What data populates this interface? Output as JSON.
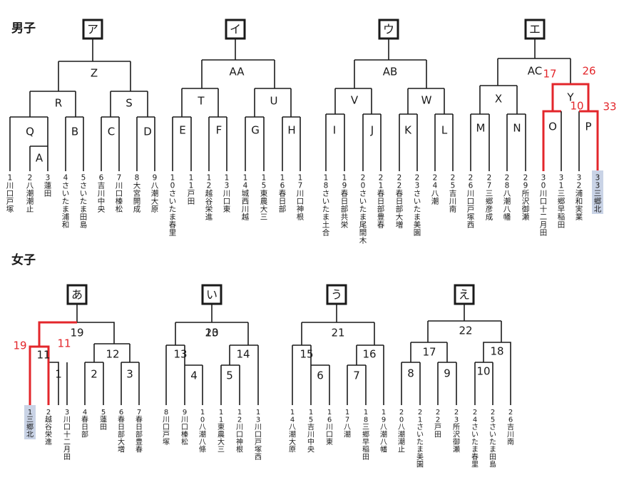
{
  "sections": {
    "boys": {
      "title": "男子"
    },
    "girls": {
      "title": "女子"
    }
  },
  "boys": {
    "blocks": [
      {
        "header": "ア",
        "final": "Z",
        "nodes": {
          "R": "R",
          "S": "S",
          "Q": "Q",
          "A": "A",
          "B": "B",
          "C": "C",
          "D": "D"
        },
        "teams": [
          {
            "num": "1",
            "name": "川口戸塚"
          },
          {
            "num": "2",
            "name": "八潮潮止"
          },
          {
            "num": "3",
            "name": "蓮田"
          },
          {
            "num": "4",
            "name": "さいたま浦和"
          },
          {
            "num": "5",
            "name": "さいたま田島"
          },
          {
            "num": "6",
            "name": "吉川中央"
          },
          {
            "num": "7",
            "name": "川口榛松"
          },
          {
            "num": "8",
            "name": "大宮開成"
          },
          {
            "num": "9",
            "name": "八潮大原"
          }
        ]
      },
      {
        "header": "イ",
        "final": "AA",
        "nodes": {
          "T": "T",
          "U": "U",
          "E": "E",
          "F": "F",
          "G": "G",
          "H": "H"
        },
        "teams": [
          {
            "num": "10",
            "name": "さいたま春里"
          },
          {
            "num": "11",
            "name": "戸田"
          },
          {
            "num": "12",
            "name": "越谷栄進"
          },
          {
            "num": "13",
            "name": "川口東"
          },
          {
            "num": "14",
            "name": "城西川越"
          },
          {
            "num": "15",
            "name": "東農大三"
          },
          {
            "num": "16",
            "name": "春日部"
          },
          {
            "num": "17",
            "name": "川口神根"
          }
        ]
      },
      {
        "header": "ウ",
        "final": "AB",
        "nodes": {
          "V": "V",
          "W": "W",
          "I": "I",
          "J": "J",
          "K": "K",
          "L": "L"
        },
        "teams": [
          {
            "num": "18",
            "name": "さいたま土合"
          },
          {
            "num": "19",
            "name": "春日部共栄"
          },
          {
            "num": "20",
            "name": "さいたま尾間木"
          },
          {
            "num": "21",
            "name": "春日部豊春"
          },
          {
            "num": "22",
            "name": "春日部大増"
          },
          {
            "num": "23",
            "name": "さいたま美園"
          },
          {
            "num": "24",
            "name": "八潮"
          },
          {
            "num": "25",
            "name": "吉川南"
          }
        ]
      },
      {
        "header": "エ",
        "final": "AC",
        "nodes": {
          "X": "X",
          "Y": "Y",
          "M": "M",
          "N": "N",
          "O": "O",
          "P": "P"
        },
        "teams": [
          {
            "num": "26",
            "name": "川口戸塚西"
          },
          {
            "num": "27",
            "name": "三郷彦成"
          },
          {
            "num": "28",
            "name": "八潮八幡"
          },
          {
            "num": "29",
            "name": "所沢御瀬"
          },
          {
            "num": "30",
            "name": "川口十二月田"
          },
          {
            "num": "31",
            "name": "三郷早稲田"
          },
          {
            "num": "32",
            "name": "浦和実業"
          },
          {
            "num": "33",
            "name": "三郷北"
          }
        ],
        "scores": {
          "s17": "17",
          "s26": "26",
          "s10": "10",
          "s33": "33"
        }
      }
    ]
  },
  "girls": {
    "blocks": [
      {
        "header": "あ",
        "final": "19",
        "nodes": {
          "n11": "11",
          "n12": "12",
          "n1": "1",
          "n2": "2",
          "n3": "3"
        },
        "teams": [
          {
            "num": "1",
            "name": "三郷北"
          },
          {
            "num": "2",
            "name": "越谷栄進"
          },
          {
            "num": "3",
            "name": "川口十二月田"
          },
          {
            "num": "4",
            "name": "春日部"
          },
          {
            "num": "5",
            "name": "蓮田"
          },
          {
            "num": "6",
            "name": "春日部大増"
          },
          {
            "num": "7",
            "name": "春日部豊春"
          }
        ],
        "scores": {
          "s19": "19",
          "s11": "11"
        }
      },
      {
        "header": "い",
        "final": "20",
        "nodes": {
          "n13": "13",
          "n14": "14",
          "n4": "4",
          "n5": "5"
        },
        "teams": [
          {
            "num": "8",
            "name": "川口戸塚"
          },
          {
            "num": "9",
            "name": "川口榛松"
          },
          {
            "num": "10",
            "name": "八潮八條"
          },
          {
            "num": "11",
            "name": "東農大三"
          },
          {
            "num": "12",
            "name": "川口神根"
          },
          {
            "num": "13",
            "name": "川口戸塚西"
          }
        ]
      },
      {
        "header": "う",
        "final": "21",
        "nodes": {
          "n15": "15",
          "n16": "16",
          "n6": "6",
          "n7": "7"
        },
        "teams": [
          {
            "num": "14",
            "name": "八潮大原"
          },
          {
            "num": "15",
            "name": "吉川中央"
          },
          {
            "num": "16",
            "name": "川口東"
          },
          {
            "num": "17",
            "name": "八潮"
          },
          {
            "num": "18",
            "name": "三郷早稲田"
          },
          {
            "num": "19",
            "name": "八潮八幡"
          }
        ]
      },
      {
        "header": "え",
        "final": "22",
        "nodes": {
          "n17": "17",
          "n18": "18",
          "n8": "8",
          "n9": "9",
          "n10": "10"
        },
        "teams": [
          {
            "num": "20",
            "name": "八潮潮止"
          },
          {
            "num": "21",
            "name": "さいたま美園"
          },
          {
            "num": "22",
            "name": "戸田"
          },
          {
            "num": "23",
            "name": "所沢御瀬"
          },
          {
            "num": "24",
            "name": "さいたま春里"
          },
          {
            "num": "25",
            "name": "さいたま田島"
          },
          {
            "num": "26",
            "name": "吉川南"
          }
        ]
      }
    ]
  },
  "colors": {
    "line": "#1a1a1a",
    "highlight": "#e3262b",
    "chip": "#c9d3e6"
  }
}
